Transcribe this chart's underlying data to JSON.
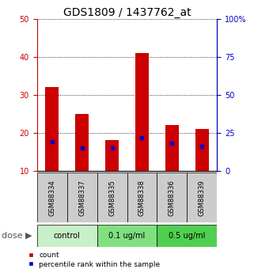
{
  "title": "GDS1809 / 1437762_at",
  "samples": [
    "GSM88334",
    "GSM88337",
    "GSM88335",
    "GSM88338",
    "GSM88336",
    "GSM88339"
  ],
  "count_values": [
    32,
    25,
    18,
    41,
    22,
    21
  ],
  "percentile_values": [
    19,
    15,
    15,
    22,
    18,
    16
  ],
  "ylim_left": [
    10,
    50
  ],
  "ylim_right": [
    0,
    100
  ],
  "yticks_left": [
    10,
    20,
    30,
    40,
    50
  ],
  "yticks_right": [
    0,
    25,
    50,
    75,
    100
  ],
  "groups": [
    {
      "label": "control",
      "indices": [
        0,
        1
      ],
      "color": "#c8f0c8"
    },
    {
      "label": "0.1 ug/ml",
      "indices": [
        2,
        3
      ],
      "color": "#80e080"
    },
    {
      "label": "0.5 ug/ml",
      "indices": [
        4,
        5
      ],
      "color": "#50d050"
    }
  ],
  "bar_color": "#cc0000",
  "percentile_color": "#0000cc",
  "bar_width": 0.45,
  "sample_box_color": "#cccccc",
  "dose_label": "dose",
  "legend_count_label": "count",
  "legend_percentile_label": "percentile rank within the sample",
  "title_fontsize": 10,
  "tick_fontsize": 7,
  "sample_fontsize": 6,
  "group_fontsize": 7,
  "legend_fontsize": 6.5,
  "dose_fontsize": 8
}
